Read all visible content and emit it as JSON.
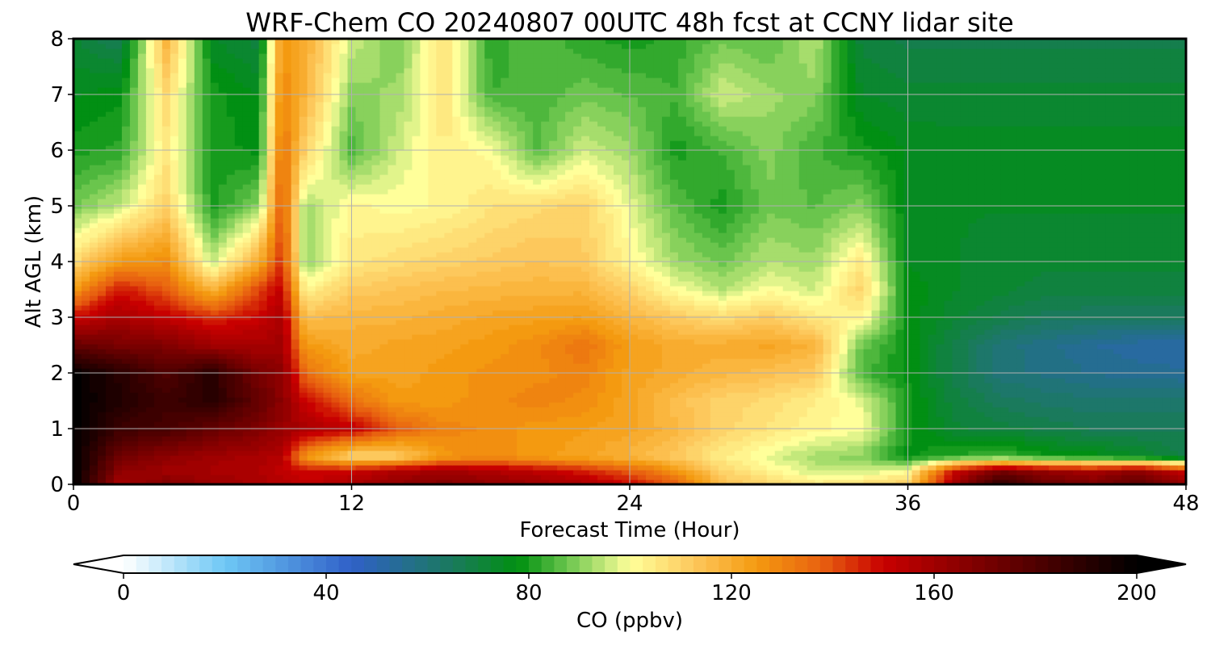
{
  "chart_data": {
    "type": "heatmap",
    "title": "WRF-Chem CO  20240807 00UTC 48h fcst at CCNY lidar site",
    "xlabel": "Forecast Time (Hour)",
    "ylabel": "Alt AGL (km)",
    "xlim": [
      0,
      48
    ],
    "ylim": [
      0,
      8
    ],
    "xticks": [
      0,
      12,
      24,
      36,
      48
    ],
    "yticks": [
      0,
      1,
      2,
      3,
      4,
      5,
      6,
      7,
      8
    ],
    "grid": true,
    "colorbar": {
      "label": "CO  (ppbv)",
      "range": [
        0,
        200
      ],
      "ticks": [
        0,
        40,
        80,
        120,
        160,
        200
      ],
      "extend": "both",
      "orientation": "horizontal",
      "placement": "bottom",
      "stops": [
        {
          "v": 0,
          "color": "#ffffff"
        },
        {
          "v": 20,
          "color": "#6ec8f5"
        },
        {
          "v": 45,
          "color": "#3060c8"
        },
        {
          "v": 65,
          "color": "#1a7a5c"
        },
        {
          "v": 78,
          "color": "#009010"
        },
        {
          "v": 88,
          "color": "#70c850"
        },
        {
          "v": 100,
          "color": "#ffff9a"
        },
        {
          "v": 113,
          "color": "#fdc65a"
        },
        {
          "v": 125,
          "color": "#f49a10"
        },
        {
          "v": 138,
          "color": "#e86010"
        },
        {
          "v": 150,
          "color": "#c80000"
        },
        {
          "v": 172,
          "color": "#700000"
        },
        {
          "v": 200,
          "color": "#000000"
        }
      ]
    },
    "x": [
      0,
      2,
      4,
      6,
      8,
      9,
      10,
      12,
      14,
      16,
      18,
      20,
      22,
      24,
      26,
      28,
      30,
      32,
      34,
      36,
      38,
      40,
      42,
      44,
      46,
      48
    ],
    "y": [
      0,
      0.25,
      0.5,
      1,
      1.5,
      2,
      2.5,
      3,
      3.5,
      4,
      5,
      6,
      7,
      8
    ],
    "values": [
      [
        200,
        158,
        168,
        162,
        158,
        155,
        152,
        158,
        165,
        168,
        165,
        162,
        158,
        150,
        138,
        115,
        110,
        105,
        108,
        112,
        160,
        190,
        175,
        170,
        178,
        165
      ],
      [
        200,
        165,
        160,
        158,
        156,
        152,
        148,
        150,
        156,
        160,
        156,
        152,
        146,
        138,
        126,
        110,
        102,
        96,
        95,
        100,
        150,
        170,
        162,
        158,
        165,
        150
      ],
      [
        200,
        172,
        165,
        160,
        158,
        155,
        125,
        108,
        110,
        125,
        128,
        125,
        122,
        118,
        112,
        104,
        98,
        92,
        90,
        78,
        82,
        85,
        80,
        78,
        74,
        68
      ],
      [
        200,
        185,
        182,
        175,
        168,
        162,
        158,
        152,
        138,
        130,
        128,
        125,
        124,
        122,
        117,
        110,
        106,
        102,
        100,
        80,
        72,
        70,
        68,
        66,
        66,
        66
      ],
      [
        200,
        192,
        185,
        190,
        175,
        165,
        150,
        135,
        125,
        125,
        128,
        130,
        128,
        122,
        115,
        110,
        108,
        104,
        98,
        80,
        70,
        65,
        63,
        62,
        62,
        62
      ],
      [
        200,
        190,
        180,
        190,
        170,
        165,
        135,
        123,
        122,
        125,
        127,
        128,
        130,
        123,
        120,
        117,
        115,
        112,
        85,
        78,
        68,
        60,
        58,
        56,
        55,
        54
      ],
      [
        175,
        170,
        168,
        160,
        158,
        160,
        125,
        120,
        122,
        123,
        125,
        128,
        134,
        124,
        120,
        120,
        122,
        118,
        88,
        78,
        68,
        60,
        57,
        54,
        52,
        52
      ],
      [
        150,
        158,
        152,
        145,
        150,
        158,
        115,
        118,
        118,
        120,
        122,
        123,
        124,
        118,
        112,
        108,
        112,
        105,
        102,
        78,
        72,
        68,
        65,
        64,
        64,
        64
      ],
      [
        125,
        148,
        138,
        118,
        142,
        152,
        102,
        112,
        114,
        116,
        117,
        118,
        118,
        110,
        100,
        94,
        100,
        96,
        110,
        78,
        74,
        72,
        70,
        70,
        70,
        70
      ],
      [
        108,
        125,
        128,
        95,
        120,
        145,
        90,
        105,
        108,
        110,
        112,
        114,
        112,
        102,
        92,
        88,
        94,
        92,
        105,
        76,
        74,
        72,
        72,
        72,
        72,
        72
      ],
      [
        88,
        95,
        110,
        80,
        90,
        140,
        92,
        102,
        100,
        102,
        106,
        108,
        110,
        98,
        86,
        80,
        88,
        86,
        90,
        76,
        74,
        74,
        74,
        74,
        74,
        74
      ],
      [
        80,
        82,
        105,
        80,
        78,
        135,
        110,
        85,
        96,
        104,
        100,
        86,
        96,
        92,
        80,
        84,
        90,
        84,
        80,
        76,
        75,
        75,
        75,
        75,
        75,
        75
      ],
      [
        76,
        78,
        108,
        80,
        76,
        130,
        118,
        90,
        92,
        106,
        84,
        84,
        88,
        86,
        84,
        96,
        92,
        90,
        74,
        72,
        72,
        72,
        72,
        72,
        72,
        72
      ],
      [
        72,
        66,
        118,
        74,
        70,
        126,
        120,
        96,
        88,
        108,
        82,
        86,
        82,
        80,
        82,
        88,
        86,
        94,
        70,
        68,
        68,
        68,
        68,
        68,
        68,
        68
      ]
    ]
  }
}
